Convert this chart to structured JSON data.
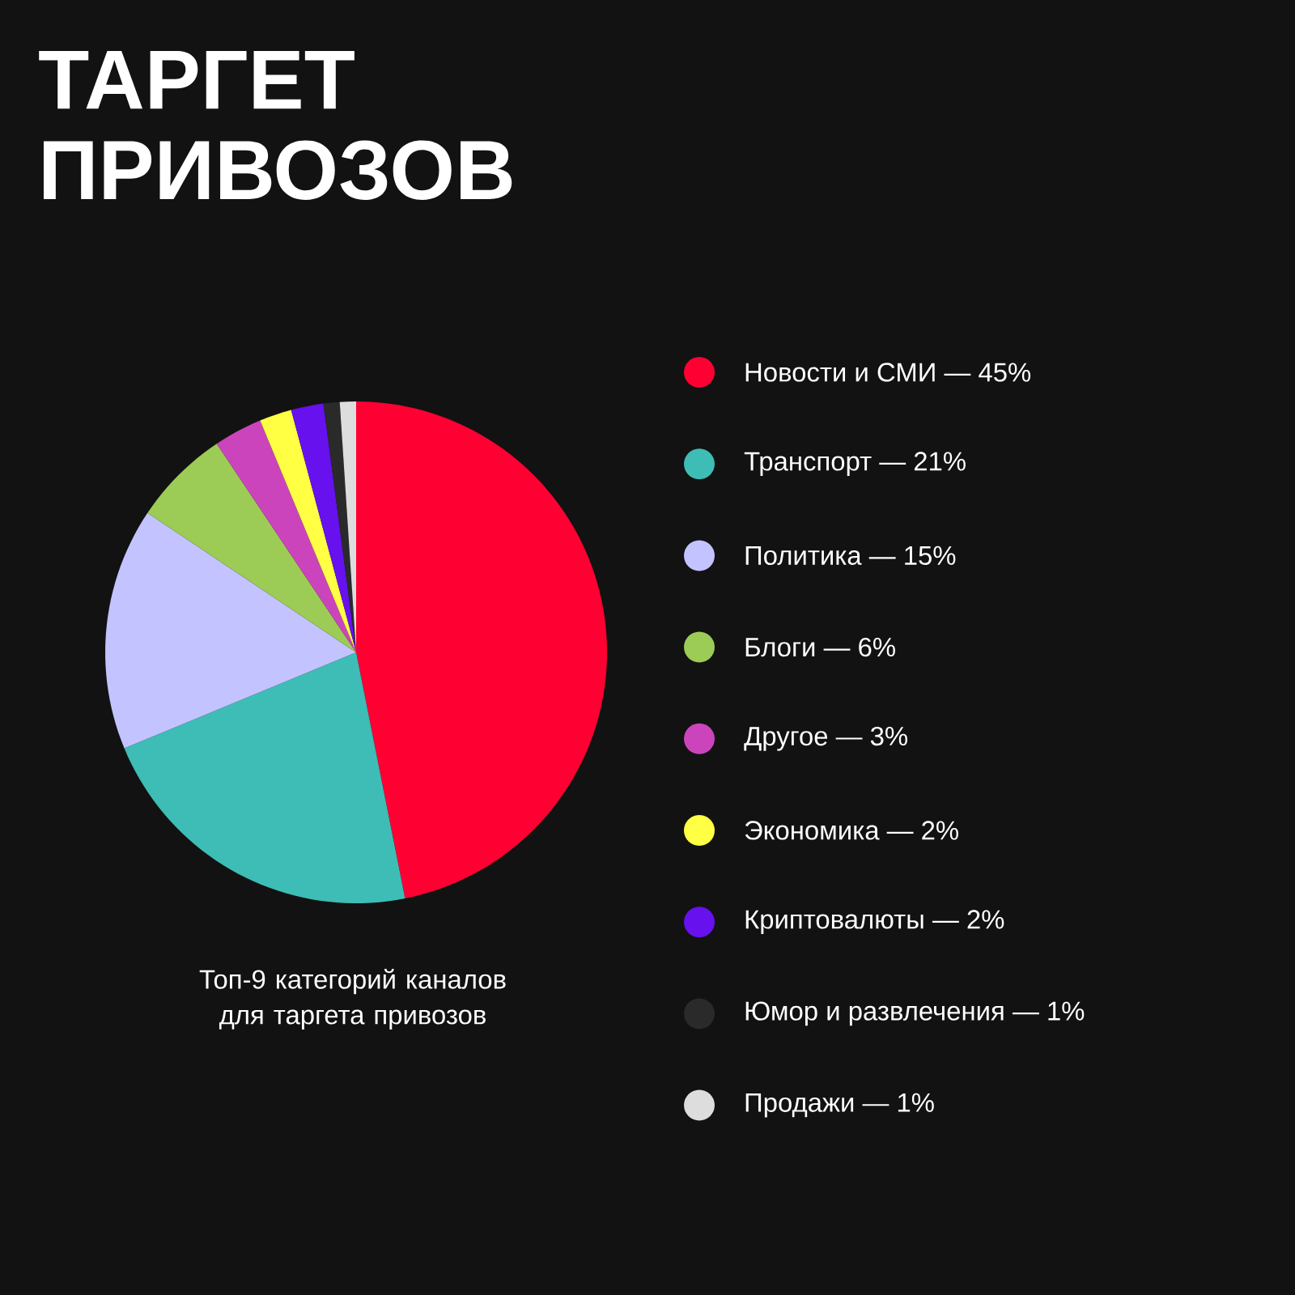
{
  "chart_data": {
    "type": "pie",
    "title": "ТАРГЕТ ПРИВОЗОВ",
    "categories": [
      "Новости и СМИ",
      "Транспорт",
      "Политика",
      "Блоги",
      "Другое",
      "Экономика",
      "Криптовалюты",
      "Юмор и развлечения",
      "Продажи"
    ],
    "values": [
      45,
      21,
      15,
      6,
      3,
      2,
      2,
      1,
      1
    ],
    "value_labels": [
      "— 45%",
      "— 21%",
      "— 15%",
      "— 6%",
      "— 3%",
      "— 2%",
      "— 2%",
      "— 1%",
      "— 1%"
    ],
    "colors": [
      "#ff0033",
      "#3dbdb5",
      "#c3c3ff",
      "#9ccc55",
      "#cc44bb",
      "#ffff44",
      "#6611ee",
      "#2a2a2a",
      "#dddddd"
    ],
    "legend": "right",
    "annotations": [
      "Топ-9 категорий каналов для таргета привозов"
    ]
  }
}
